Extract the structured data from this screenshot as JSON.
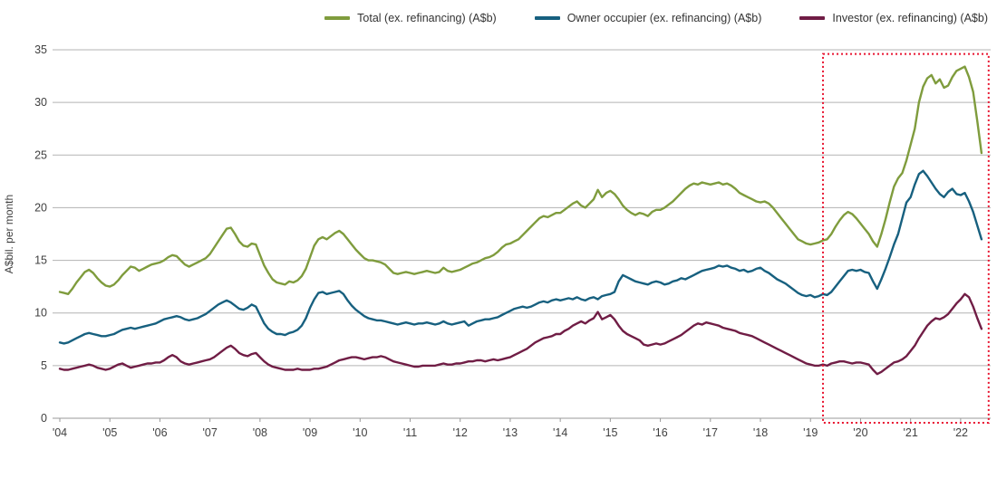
{
  "chart_data": {
    "type": "line",
    "title": "",
    "ylabel": "A$bil. per month",
    "xlabel": "",
    "ylim": [
      0,
      35
    ],
    "yticks": [
      0,
      5,
      10,
      15,
      20,
      25,
      30,
      35
    ],
    "x_start_year": 2004,
    "x_end_year": 2022.6,
    "x_tick_labels": [
      "'04",
      "'05",
      "'06",
      "'07",
      "'08",
      "'09",
      "'10",
      "'11",
      "'12",
      "'13",
      "'14",
      "'15",
      "'16",
      "'17",
      "'18",
      "'19",
      "'20",
      "'21",
      "'22"
    ],
    "grid": "horizontal",
    "legend_position": "top",
    "highlight_region": {
      "description": "red dotted rectangle highlighting the COVID-era lending surge",
      "color": "#E8112D",
      "x_from": 2019.25,
      "x_to": 2022.56,
      "y_from": 0,
      "y_to": 34.6
    },
    "series": [
      {
        "name": "Total (ex. refinancing) (A$b)",
        "color": "#7F9C3D",
        "values_by_year": {
          "2004": [
            12.0,
            11.9,
            11.8,
            12.3,
            12.9,
            13.4,
            13.9,
            14.1,
            13.8,
            13.3,
            12.9,
            12.6
          ],
          "2005": [
            12.5,
            12.7,
            13.1,
            13.6,
            14.0,
            14.4,
            14.3,
            14.0,
            14.2,
            14.4,
            14.6,
            14.7
          ],
          "2006": [
            14.8,
            15.0,
            15.3,
            15.5,
            15.4,
            15.0,
            14.6,
            14.4,
            14.6,
            14.8,
            15.0,
            15.2
          ],
          "2007": [
            15.6,
            16.2,
            16.8,
            17.4,
            18.0,
            18.1,
            17.5,
            16.8,
            16.4,
            16.3,
            16.6,
            16.5
          ],
          "2008": [
            15.5,
            14.5,
            13.8,
            13.2,
            12.9,
            12.8,
            12.7,
            13.0,
            12.9,
            13.1,
            13.5,
            14.2
          ],
          "2009": [
            15.3,
            16.4,
            17.0,
            17.2,
            17.0,
            17.3,
            17.6,
            17.8,
            17.5,
            17.0,
            16.5,
            16.0
          ],
          "2010": [
            15.6,
            15.2,
            15.0,
            15.0,
            14.9,
            14.8,
            14.6,
            14.2,
            13.8,
            13.7,
            13.8,
            13.9
          ],
          "2011": [
            13.8,
            13.7,
            13.8,
            13.9,
            14.0,
            13.9,
            13.8,
            13.9,
            14.3,
            14.0,
            13.9,
            14.0
          ],
          "2012": [
            14.1,
            14.3,
            14.5,
            14.7,
            14.8,
            15.0,
            15.2,
            15.3,
            15.5,
            15.8,
            16.2,
            16.5
          ],
          "2013": [
            16.6,
            16.8,
            17.0,
            17.4,
            17.8,
            18.2,
            18.6,
            19.0,
            19.2,
            19.1,
            19.3,
            19.5
          ],
          "2014": [
            19.5,
            19.8,
            20.1,
            20.4,
            20.6,
            20.2,
            20.0,
            20.4,
            20.8,
            21.7,
            21.0,
            21.4
          ],
          "2015": [
            21.6,
            21.3,
            20.8,
            20.2,
            19.8,
            19.5,
            19.3,
            19.5,
            19.4,
            19.2,
            19.6,
            19.8
          ],
          "2016": [
            19.8,
            20.0,
            20.3,
            20.6,
            21.0,
            21.4,
            21.8,
            22.1,
            22.3,
            22.2,
            22.4,
            22.3
          ],
          "2017": [
            22.2,
            22.3,
            22.4,
            22.2,
            22.3,
            22.1,
            21.8,
            21.4,
            21.2,
            21.0,
            20.8,
            20.6
          ],
          "2018": [
            20.5,
            20.6,
            20.4,
            20.0,
            19.5,
            19.0,
            18.5,
            18.0,
            17.5,
            17.0,
            16.8,
            16.6
          ],
          "2019": [
            16.5,
            16.6,
            16.7,
            16.9,
            17.0,
            17.5,
            18.2,
            18.8,
            19.3,
            19.6,
            19.4,
            19.0
          ],
          "2020": [
            18.5,
            18.0,
            17.5,
            16.8,
            16.3,
            17.5,
            18.9,
            20.5,
            22.0,
            22.8,
            23.3,
            24.5
          ],
          "2021": [
            26.0,
            27.5,
            30.0,
            31.5,
            32.3,
            32.6,
            31.8,
            32.2,
            31.4,
            31.6,
            32.4,
            33.0
          ],
          "2022": [
            33.2,
            33.4,
            32.4,
            31.0,
            28.2,
            25.2
          ]
        }
      },
      {
        "name": "Owner occupier (ex. refinancing) (A$b)",
        "color": "#17607F",
        "values_by_year": {
          "2004": [
            7.2,
            7.1,
            7.2,
            7.4,
            7.6,
            7.8,
            8.0,
            8.1,
            8.0,
            7.9,
            7.8,
            7.8
          ],
          "2005": [
            7.9,
            8.0,
            8.2,
            8.4,
            8.5,
            8.6,
            8.5,
            8.6,
            8.7,
            8.8,
            8.9,
            9.0
          ],
          "2006": [
            9.2,
            9.4,
            9.5,
            9.6,
            9.7,
            9.6,
            9.4,
            9.3,
            9.4,
            9.5,
            9.7,
            9.9
          ],
          "2007": [
            10.2,
            10.5,
            10.8,
            11.0,
            11.2,
            11.0,
            10.7,
            10.4,
            10.3,
            10.5,
            10.8,
            10.6
          ],
          "2008": [
            9.8,
            9.0,
            8.5,
            8.2,
            8.0,
            8.0,
            7.9,
            8.1,
            8.2,
            8.4,
            8.8,
            9.5
          ],
          "2009": [
            10.5,
            11.3,
            11.9,
            12.0,
            11.8,
            11.9,
            12.0,
            12.1,
            11.8,
            11.2,
            10.7,
            10.3
          ],
          "2010": [
            10.0,
            9.7,
            9.5,
            9.4,
            9.3,
            9.3,
            9.2,
            9.1,
            9.0,
            8.9,
            9.0,
            9.1
          ],
          "2011": [
            9.0,
            8.9,
            9.0,
            9.0,
            9.1,
            9.0,
            8.9,
            9.0,
            9.2,
            9.0,
            8.9,
            9.0
          ],
          "2012": [
            9.1,
            9.2,
            8.8,
            9.0,
            9.2,
            9.3,
            9.4,
            9.4,
            9.5,
            9.6,
            9.8,
            10.0
          ],
          "2013": [
            10.2,
            10.4,
            10.5,
            10.6,
            10.5,
            10.6,
            10.8,
            11.0,
            11.1,
            11.0,
            11.2,
            11.3
          ],
          "2014": [
            11.2,
            11.3,
            11.4,
            11.3,
            11.5,
            11.3,
            11.2,
            11.4,
            11.5,
            11.3,
            11.6,
            11.7
          ],
          "2015": [
            11.8,
            12.0,
            13.0,
            13.6,
            13.4,
            13.2,
            13.0,
            12.9,
            12.8,
            12.7,
            12.9,
            13.0
          ],
          "2016": [
            12.9,
            12.7,
            12.8,
            13.0,
            13.1,
            13.3,
            13.2,
            13.4,
            13.6,
            13.8,
            14.0,
            14.1
          ],
          "2017": [
            14.2,
            14.3,
            14.5,
            14.4,
            14.5,
            14.3,
            14.2,
            14.0,
            14.1,
            13.9,
            14.0,
            14.2
          ],
          "2018": [
            14.3,
            14.0,
            13.8,
            13.5,
            13.2,
            13.0,
            12.8,
            12.5,
            12.2,
            11.9,
            11.7,
            11.6
          ],
          "2019": [
            11.7,
            11.5,
            11.6,
            11.8,
            11.7,
            12.0,
            12.5,
            13.0,
            13.5,
            14.0,
            14.1,
            14.0
          ],
          "2020": [
            14.1,
            13.9,
            13.8,
            13.0,
            12.3,
            13.2,
            14.2,
            15.3,
            16.5,
            17.5,
            19.0,
            20.5
          ],
          "2021": [
            21.0,
            22.2,
            23.2,
            23.5,
            23.0,
            22.4,
            21.8,
            21.3,
            21.0,
            21.5,
            21.8,
            21.3
          ],
          "2022": [
            21.2,
            21.4,
            20.6,
            19.6,
            18.3,
            17.0
          ]
        }
      },
      {
        "name": "Investor (ex. refinancing) (A$b)",
        "color": "#701D45",
        "values_by_year": {
          "2004": [
            4.7,
            4.6,
            4.6,
            4.7,
            4.8,
            4.9,
            5.0,
            5.1,
            5.0,
            4.8,
            4.7,
            4.6
          ],
          "2005": [
            4.7,
            4.9,
            5.1,
            5.2,
            5.0,
            4.8,
            4.9,
            5.0,
            5.1,
            5.2,
            5.2,
            5.3
          ],
          "2006": [
            5.3,
            5.5,
            5.8,
            6.0,
            5.8,
            5.4,
            5.2,
            5.1,
            5.2,
            5.3,
            5.4,
            5.5
          ],
          "2007": [
            5.6,
            5.8,
            6.1,
            6.4,
            6.7,
            6.9,
            6.6,
            6.2,
            6.0,
            5.9,
            6.1,
            6.2
          ],
          "2008": [
            5.8,
            5.4,
            5.1,
            4.9,
            4.8,
            4.7,
            4.6,
            4.6,
            4.6,
            4.7,
            4.6,
            4.6
          ],
          "2009": [
            4.6,
            4.7,
            4.7,
            4.8,
            4.9,
            5.1,
            5.3,
            5.5,
            5.6,
            5.7,
            5.8,
            5.8
          ],
          "2010": [
            5.7,
            5.6,
            5.7,
            5.8,
            5.8,
            5.9,
            5.8,
            5.6,
            5.4,
            5.3,
            5.2,
            5.1
          ],
          "2011": [
            5.0,
            4.9,
            4.9,
            5.0,
            5.0,
            5.0,
            5.0,
            5.1,
            5.2,
            5.1,
            5.1,
            5.2
          ],
          "2012": [
            5.2,
            5.3,
            5.4,
            5.4,
            5.5,
            5.5,
            5.4,
            5.5,
            5.6,
            5.5,
            5.6,
            5.7
          ],
          "2013": [
            5.8,
            6.0,
            6.2,
            6.4,
            6.6,
            6.9,
            7.2,
            7.4,
            7.6,
            7.7,
            7.8,
            8.0
          ],
          "2014": [
            8.0,
            8.3,
            8.5,
            8.8,
            9.0,
            9.2,
            9.0,
            9.3,
            9.5,
            10.1,
            9.4,
            9.6
          ],
          "2015": [
            9.8,
            9.4,
            8.8,
            8.3,
            8.0,
            7.8,
            7.6,
            7.4,
            7.0,
            6.9,
            7.0,
            7.1
          ],
          "2016": [
            7.0,
            7.1,
            7.3,
            7.5,
            7.7,
            7.9,
            8.2,
            8.5,
            8.8,
            9.0,
            8.9,
            9.1
          ],
          "2017": [
            9.0,
            8.9,
            8.8,
            8.6,
            8.5,
            8.4,
            8.3,
            8.1,
            8.0,
            7.9,
            7.8,
            7.6
          ],
          "2018": [
            7.4,
            7.2,
            7.0,
            6.8,
            6.6,
            6.4,
            6.2,
            6.0,
            5.8,
            5.6,
            5.4,
            5.2
          ],
          "2019": [
            5.1,
            5.0,
            5.0,
            5.1,
            5.0,
            5.2,
            5.3,
            5.4,
            5.4,
            5.3,
            5.2,
            5.3
          ],
          "2020": [
            5.3,
            5.2,
            5.1,
            4.6,
            4.2,
            4.4,
            4.7,
            5.0,
            5.3,
            5.4,
            5.6,
            5.9
          ],
          "2021": [
            6.4,
            6.9,
            7.6,
            8.2,
            8.8,
            9.2,
            9.5,
            9.4,
            9.6,
            9.9,
            10.4,
            10.9
          ],
          "2022": [
            11.3,
            11.8,
            11.5,
            10.6,
            9.5,
            8.5
          ]
        }
      }
    ],
    "style": {
      "grid_color": "#b3b3b3",
      "baseline_color": "#9a9a9a",
      "tick_text_color": "#404040",
      "line_width": 2.4
    }
  }
}
